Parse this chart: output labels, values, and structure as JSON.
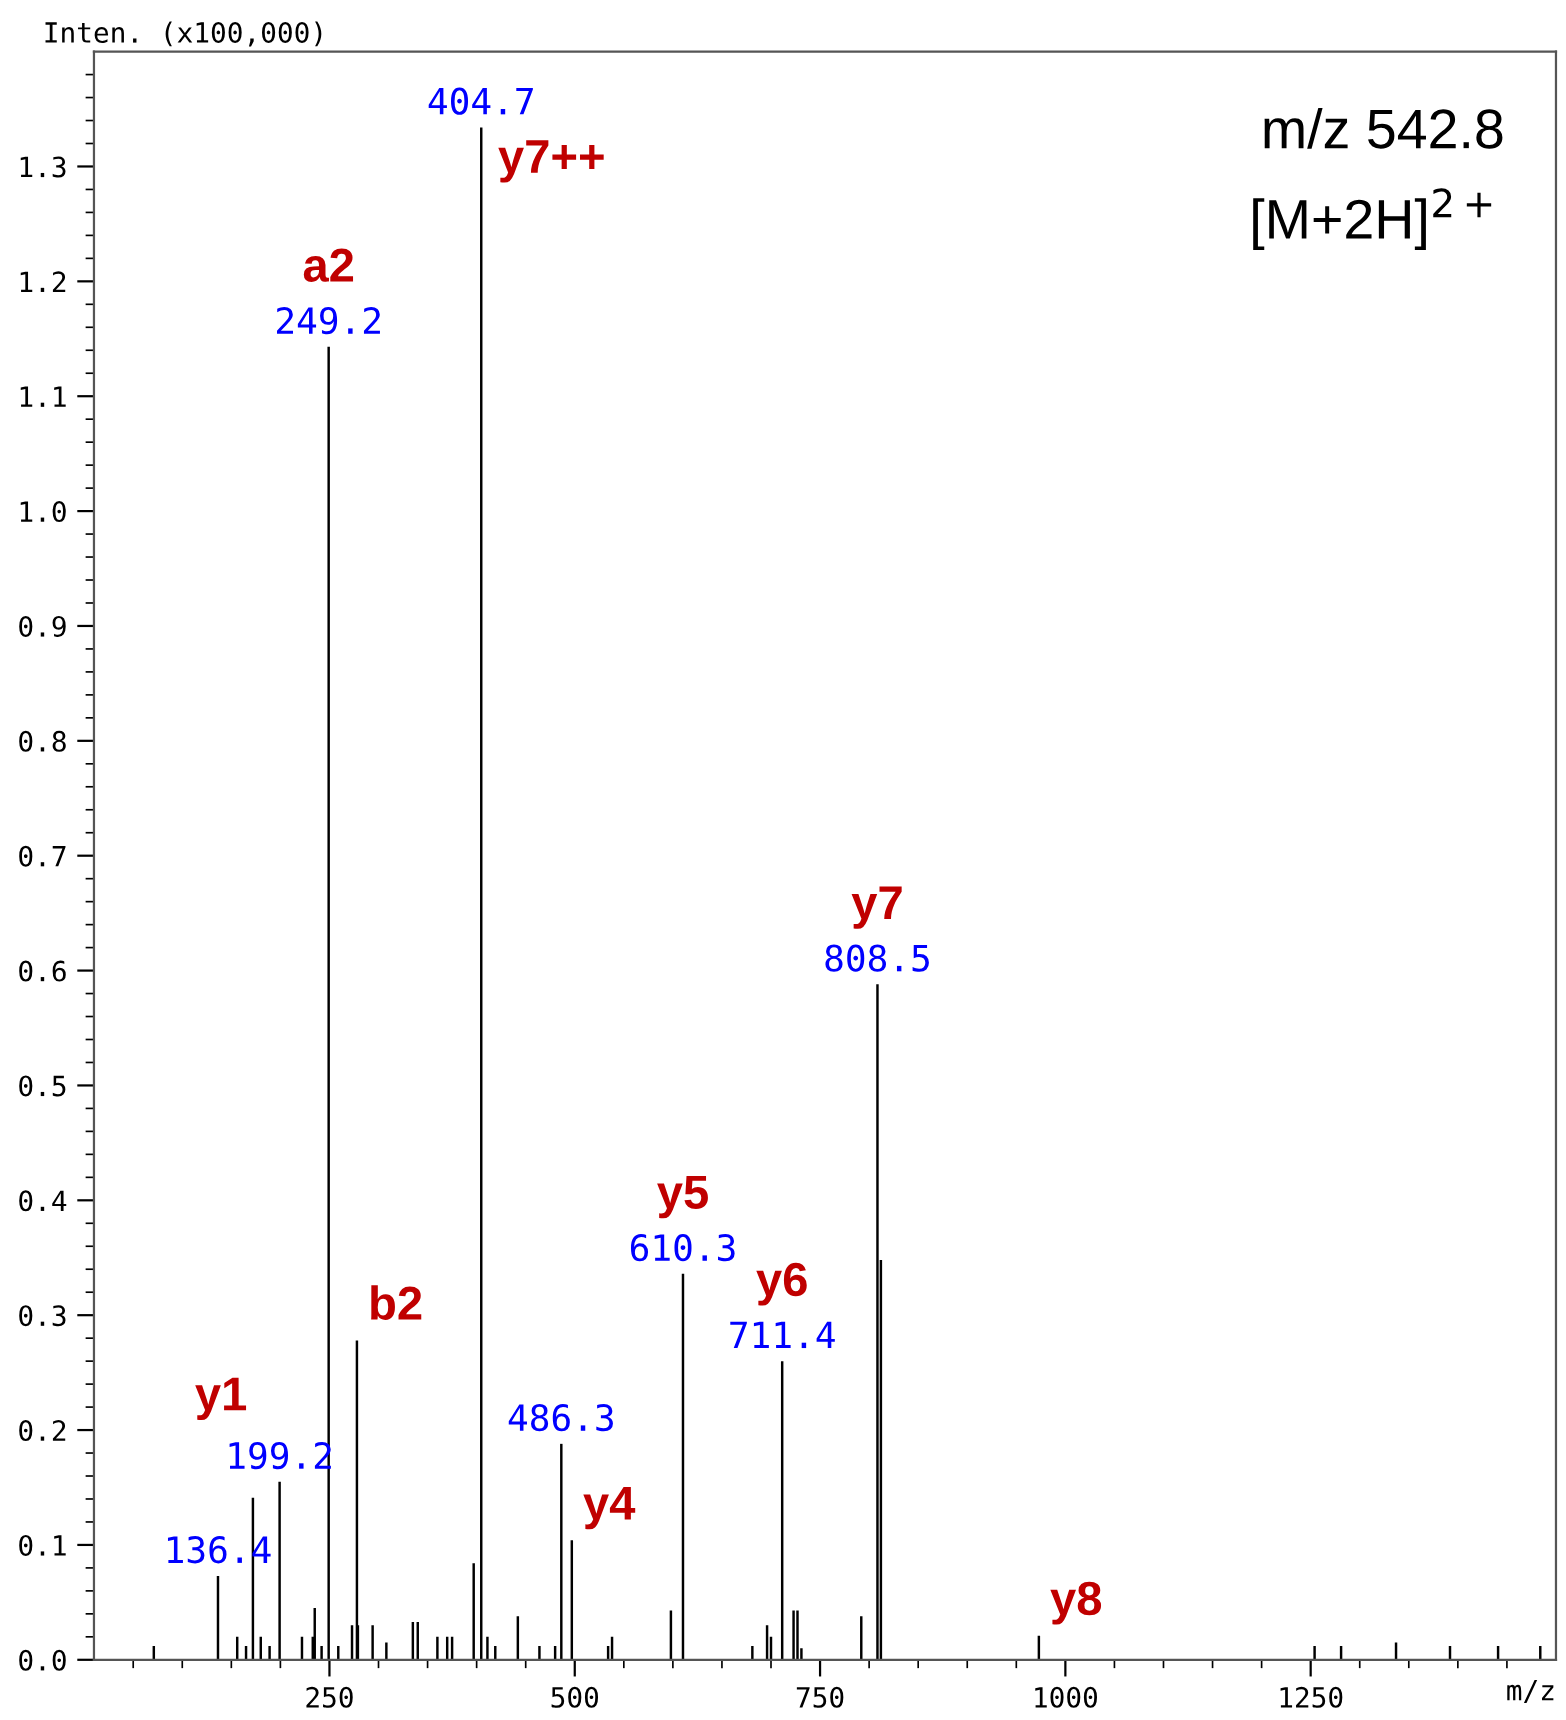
{
  "chart_data": {
    "type": "bar",
    "xlabel": "m/z",
    "ylabel": "Inten. (x100,000)",
    "series": [
      {
        "color": "#000000",
        "x": [
          71,
          136.4,
          156,
          165,
          172,
          180,
          189,
          199.2,
          222,
          233,
          235,
          242,
          249.2,
          259,
          273,
          278,
          279,
          294,
          308,
          335,
          340,
          360,
          370,
          375,
          397,
          404.7,
          411,
          419,
          442,
          464,
          480,
          486.3,
          497,
          534,
          538,
          598,
          610.3,
          681,
          696,
          700,
          711.4,
          723,
          727,
          731,
          792,
          808.5,
          812,
          973,
          1254,
          1281,
          1337,
          1392,
          1441,
          1484
        ],
        "values": [
          0.012,
          0.073,
          0.02,
          0.012,
          0.141,
          0.02,
          0.012,
          0.155,
          0.02,
          0.02,
          0.045,
          0.012,
          1.143,
          0.012,
          0.03,
          0.278,
          0.03,
          0.03,
          0.015,
          0.033,
          0.033,
          0.02,
          0.02,
          0.02,
          0.084,
          1.334,
          0.02,
          0.012,
          0.038,
          0.012,
          0.012,
          0.188,
          0.104,
          0.012,
          0.02,
          0.043,
          0.336,
          0.012,
          0.03,
          0.02,
          0.26,
          0.043,
          0.043,
          0.01,
          0.038,
          0.588,
          0.348,
          0.021,
          0.012,
          0.012,
          0.015,
          0.012,
          0.012,
          0.012
        ]
      }
    ],
    "xlim": [
      10,
      1500
    ],
    "xticks": [
      {
        "value": 50,
        "label": null
      },
      {
        "value": 100,
        "label": null
      },
      {
        "value": 150,
        "label": null
      },
      {
        "value": 200,
        "label": null
      },
      250,
      {
        "value": 300,
        "label": null
      },
      {
        "value": 350,
        "label": null
      },
      {
        "value": 400,
        "label": null
      },
      {
        "value": 450,
        "label": null
      },
      500,
      {
        "value": 550,
        "label": null
      },
      {
        "value": 600,
        "label": null
      },
      {
        "value": 650,
        "label": null
      },
      {
        "value": 700,
        "label": null
      },
      750,
      {
        "value": 800,
        "label": null
      },
      {
        "value": 850,
        "label": null
      },
      {
        "value": 900,
        "label": null
      },
      {
        "value": 950,
        "label": null
      },
      1000,
      {
        "value": 1050,
        "label": null
      },
      {
        "value": 1100,
        "label": null
      },
      {
        "value": 1150,
        "label": null
      },
      {
        "value": 1200,
        "label": null
      },
      1250,
      {
        "value": 1300,
        "label": null
      },
      {
        "value": 1350,
        "label": null
      },
      {
        "value": 1400,
        "label": null
      },
      {
        "value": 1450,
        "label": null
      }
    ],
    "ylim": [
      0,
      1.4
    ],
    "yticks": [
      {
        "value": 0,
        "label": "0.0"
      },
      {
        "value": 0.02,
        "label": null
      },
      {
        "value": 0.04,
        "label": null
      },
      {
        "value": 0.06,
        "label": null
      },
      {
        "value": 0.08,
        "label": null
      },
      0.1,
      {
        "value": 0.12,
        "label": null
      },
      {
        "value": 0.14,
        "label": null
      },
      {
        "value": 0.16,
        "label": null
      },
      {
        "value": 0.18,
        "label": null
      },
      0.2,
      {
        "value": 0.22,
        "label": null
      },
      {
        "value": 0.24,
        "label": null
      },
      {
        "value": 0.26,
        "label": null
      },
      {
        "value": 0.28,
        "label": null
      },
      0.3,
      {
        "value": 0.32,
        "label": null
      },
      {
        "value": 0.34,
        "label": null
      },
      {
        "value": 0.36,
        "label": null
      },
      {
        "value": 0.38,
        "label": null
      },
      0.4,
      {
        "value": 0.42,
        "label": null
      },
      {
        "value": 0.44,
        "label": null
      },
      {
        "value": 0.46,
        "label": null
      },
      {
        "value": 0.48,
        "label": null
      },
      0.5,
      {
        "value": 0.52,
        "label": null
      },
      {
        "value": 0.54,
        "label": null
      },
      {
        "value": 0.56,
        "label": null
      },
      {
        "value": 0.58,
        "label": null
      },
      0.6,
      {
        "value": 0.62,
        "label": null
      },
      {
        "value": 0.64,
        "label": null
      },
      {
        "value": 0.66,
        "label": null
      },
      {
        "value": 0.68,
        "label": null
      },
      0.7,
      {
        "value": 0.72,
        "label": null
      },
      {
        "value": 0.74,
        "label": null
      },
      {
        "value": 0.76,
        "label": null
      },
      {
        "value": 0.78,
        "label": null
      },
      0.8,
      {
        "value": 0.82,
        "label": null
      },
      {
        "value": 0.84,
        "label": null
      },
      {
        "value": 0.86,
        "label": null
      },
      {
        "value": 0.88,
        "label": null
      },
      0.9,
      {
        "value": 0.92,
        "label": null
      },
      {
        "value": 0.94,
        "label": null
      },
      {
        "value": 0.96,
        "label": null
      },
      {
        "value": 0.98,
        "label": null
      },
      {
        "value": 1,
        "label": "1.0"
      },
      {
        "value": 1.02,
        "label": null
      },
      {
        "value": 1.04,
        "label": null
      },
      {
        "value": 1.06,
        "label": null
      },
      {
        "value": 1.08,
        "label": null
      },
      1.1,
      {
        "value": 1.12,
        "label": null
      },
      {
        "value": 1.14,
        "label": null
      },
      {
        "value": 1.16,
        "label": null
      },
      {
        "value": 1.18,
        "label": null
      },
      1.2,
      {
        "value": 1.22,
        "label": null
      },
      {
        "value": 1.24,
        "label": null
      },
      {
        "value": 1.26,
        "label": null
      },
      {
        "value": 1.28,
        "label": null
      },
      1.3,
      {
        "value": 1.32,
        "label": null
      },
      {
        "value": 1.34,
        "label": null
      },
      {
        "value": 1.36,
        "label": null
      },
      {
        "value": 1.38,
        "label": null
      }
    ],
    "grid": false,
    "legend": false,
    "annotations": [
      "m/z 542.8",
      "[M+2H]$^{2+}$",
      {
        "text": "136.4",
        "x": 136.4,
        "y": 0.073
      },
      {
        "text": "199.2",
        "x": 199.2,
        "y": 0.155
      },
      {
        "text": "249.2",
        "x": 249.2,
        "y": 1.143
      },
      {
        "text": "404.7",
        "x": 404.7,
        "y": 1.334
      },
      {
        "text": "486.3",
        "x": 486.3,
        "y": 0.188
      },
      {
        "text": "610.3",
        "x": 610.3,
        "y": 0.336
      },
      {
        "text": "711.4",
        "x": 711.4,
        "y": 0.26
      },
      {
        "text": "808.5",
        "x": 808.5,
        "y": 0.588
      },
      {
        "text": "y1",
        "x": 172,
        "y": 0.141
      },
      {
        "text": "a2",
        "x": 249.2,
        "y": 1.143
      },
      {
        "text": "y7++",
        "x": 404.7,
        "y": 1.334
      },
      {
        "text": "b2",
        "x": 278,
        "y": 0.278
      },
      {
        "text": "y4",
        "x": 497,
        "y": 0.104
      },
      {
        "text": "y5",
        "x": 610.3,
        "y": 0.336
      },
      {
        "text": "y6",
        "x": 711.4,
        "y": 0.26
      },
      {
        "text": "y7",
        "x": 808.5,
        "y": 0.588
      },
      {
        "text": "y8",
        "x": 973,
        "y": 0.021
      }
    ]
  }
}
